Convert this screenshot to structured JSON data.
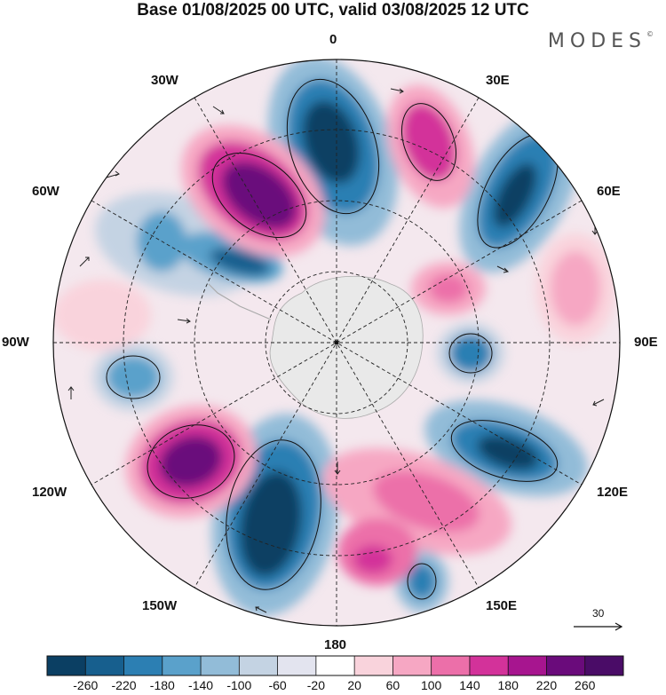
{
  "title": "Base 01/08/2025 00 UTC, valid 03/08/2025 12 UTC",
  "brand": "MODES",
  "brand_mark": "©",
  "longitude_labels": [
    "0",
    "30E",
    "60E",
    "90E",
    "120E",
    "150E",
    "180",
    "150W",
    "120W",
    "90W",
    "60W",
    "30W"
  ],
  "reference_vector": {
    "value": "30",
    "icon": "arrow-right-icon"
  },
  "colorbar": {
    "ticks": [
      "-260",
      "-220",
      "-180",
      "-140",
      "-100",
      "-60",
      "-20",
      "20",
      "60",
      "100",
      "140",
      "180",
      "220",
      "260"
    ],
    "colors": [
      "#0b3f63",
      "#175f8e",
      "#2c7fb3",
      "#5aa1cb",
      "#92bcd8",
      "#c4d3e3",
      "#e3e4ef",
      "#ffffff",
      "#f9d3dc",
      "#f6a7c3",
      "#ec6fa9",
      "#d3329a",
      "#a7158f",
      "#6a0b7b",
      "#4a0c67"
    ]
  },
  "colors": {
    "positive": "#c21d8c",
    "negative": "#175f8e",
    "continent": "#e9e9e9"
  }
}
